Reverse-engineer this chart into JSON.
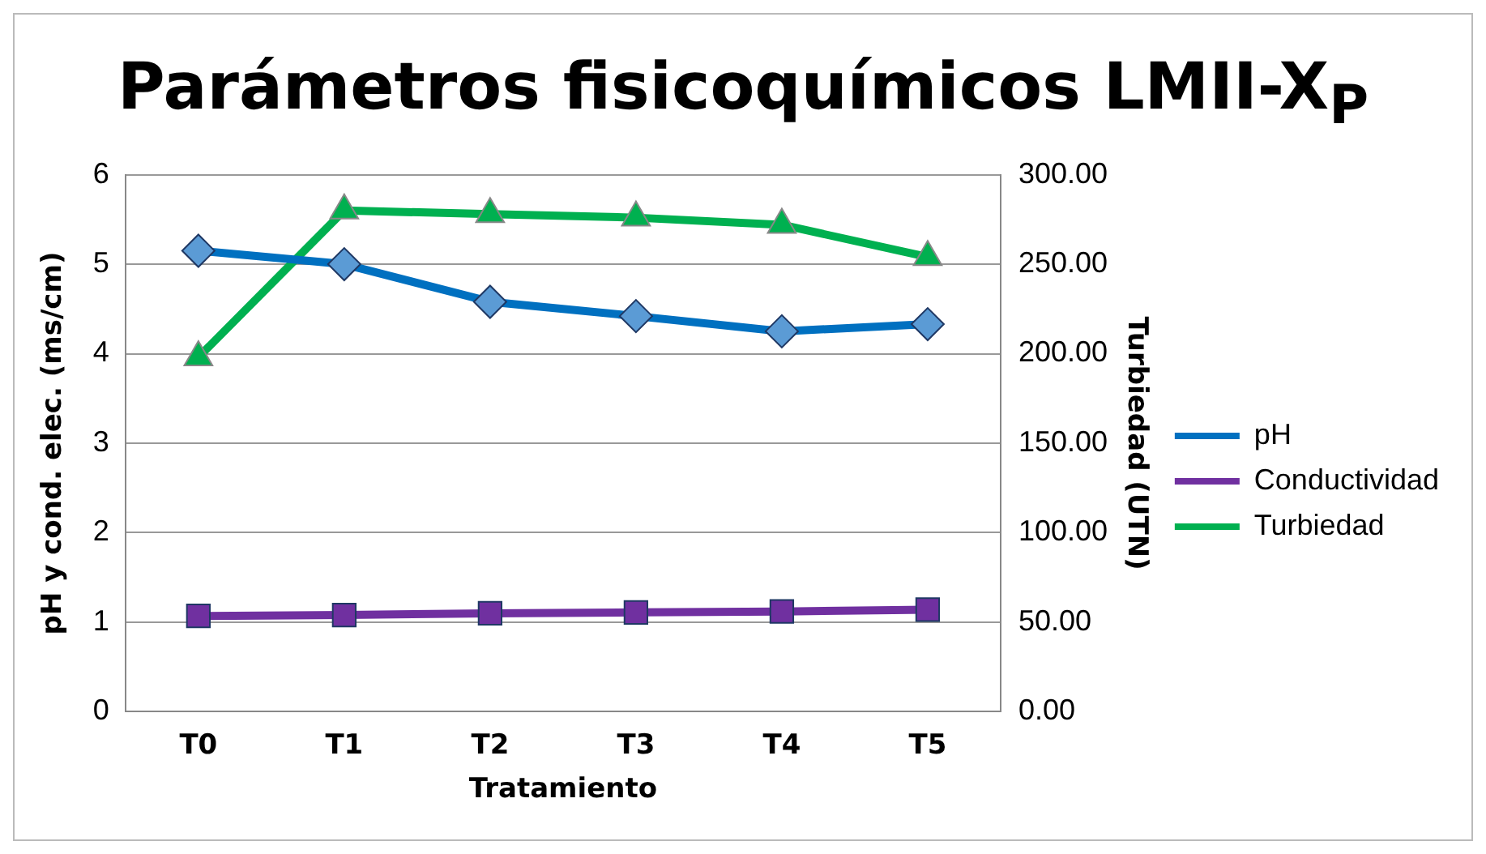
{
  "chart_data": {
    "type": "line",
    "title": "Parámetros fisicoquímicos LMII-X$_{P}$",
    "xlabel": "Tratamiento",
    "ylabel": "pH y cond. elec. (ms/cm)",
    "y2label": "Turbiedad (UTN)",
    "categories": [
      "T0",
      "T1",
      "T2",
      "T3",
      "T4",
      "T5"
    ],
    "series": [
      {
        "name": "pH",
        "color": "#0070c0",
        "marker": "diamond",
        "values": [
          5.15,
          5.0,
          4.58,
          4.42,
          4.25,
          4.33
        ]
      },
      {
        "name": "Conductividad",
        "color": "#7030a0",
        "marker": "square",
        "values": [
          1.07,
          1.08,
          1.1,
          1.11,
          1.12,
          1.14
        ]
      },
      {
        "name": "Turbiedad",
        "color": "#00b050",
        "marker": "triangle",
        "axis": "y2",
        "values": [
          198,
          280,
          278,
          276,
          272,
          254
        ]
      }
    ],
    "ylim": [
      0,
      6
    ],
    "yticks": [
      0,
      1,
      2,
      3,
      4,
      5,
      6
    ],
    "y2lim": [
      0,
      300
    ],
    "y2ticks": [
      {
        "value": 0,
        "label": "0.00"
      },
      {
        "value": 50,
        "label": "50.00"
      },
      {
        "value": 100,
        "label": "100.00"
      },
      {
        "value": 150,
        "label": "150.00"
      },
      {
        "value": 200,
        "label": "200.00"
      },
      {
        "value": 250,
        "label": "250.00"
      },
      {
        "value": 300,
        "label": "300.00"
      }
    ],
    "grid": "y",
    "legend": "right"
  }
}
